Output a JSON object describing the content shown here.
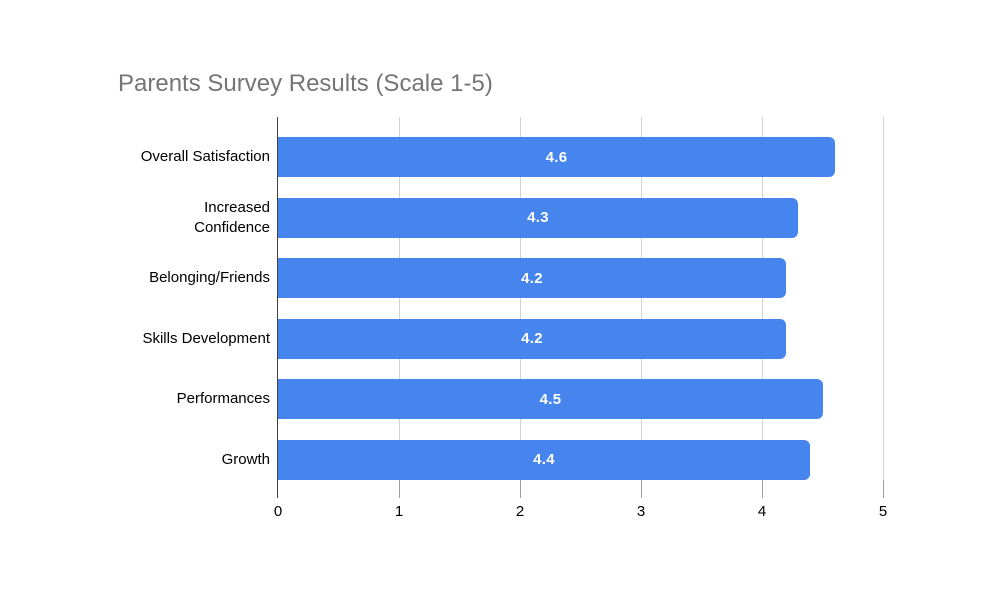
{
  "chart_data": {
    "type": "bar",
    "orientation": "horizontal",
    "title": "Parents Survey Results (Scale 1-5)",
    "categories": [
      "Overall Satisfaction",
      "Increased\nConfidence",
      "Belonging/Friends",
      "Skills Development",
      "Performances",
      "Growth"
    ],
    "values": [
      4.6,
      4.3,
      4.2,
      4.2,
      4.5,
      4.4
    ],
    "value_labels": [
      "4.6",
      "4.3",
      "4.2",
      "4.2",
      "4.5",
      "4.4"
    ],
    "value_label_position": "inside-center",
    "xlabel": "",
    "ylabel": "",
    "xlim": [
      0,
      5
    ],
    "x_ticks": [
      "0",
      "1",
      "2",
      "3",
      "4",
      "5"
    ],
    "grid": "vertical-gridlines-on",
    "legend": "none",
    "colors": {
      "bar": "#4684EE",
      "value_label": "#FFFFFF",
      "title": "#757575",
      "gridline": "#D2D2D2",
      "axis_line": "#424242",
      "tick": "#9E9E9E",
      "category_label": "#000000",
      "background": "#FFFFFF"
    }
  }
}
